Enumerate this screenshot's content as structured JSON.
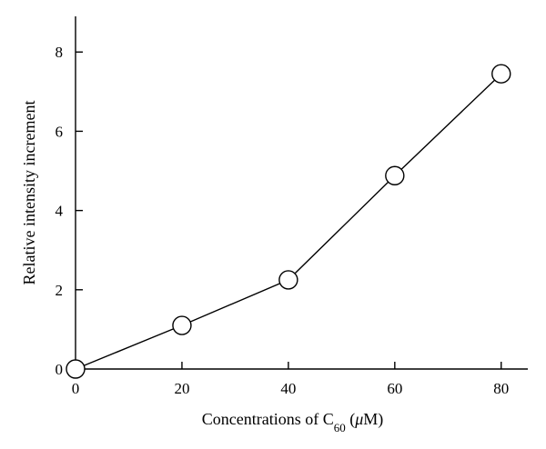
{
  "chart_data": {
    "type": "line",
    "title": "",
    "xlabel": {
      "prefix": "Concentrations of C",
      "subscript": "60",
      "open": " (",
      "symbol": "μ",
      "suffix": "M)"
    },
    "ylabel": "Relative intensity increment",
    "x": [
      0,
      20,
      40,
      60,
      80
    ],
    "series": [
      {
        "values": [
          0,
          1.1,
          2.25,
          4.88,
          7.45
        ]
      }
    ],
    "xlim": [
      0,
      85
    ],
    "ylim": [
      0,
      8.9
    ],
    "xticks": [
      0,
      20,
      40,
      60,
      80
    ],
    "xtick_labels": [
      "0",
      "20",
      "40",
      "60",
      "80"
    ],
    "yticks": [
      0,
      2,
      4,
      6,
      8
    ],
    "ytick_labels": [
      "0",
      "2",
      "4",
      "6",
      "8"
    ],
    "grid": false,
    "legend": "none",
    "marker": "open-circle",
    "line_color": "#000000",
    "marker_fill": "#ffffff"
  }
}
